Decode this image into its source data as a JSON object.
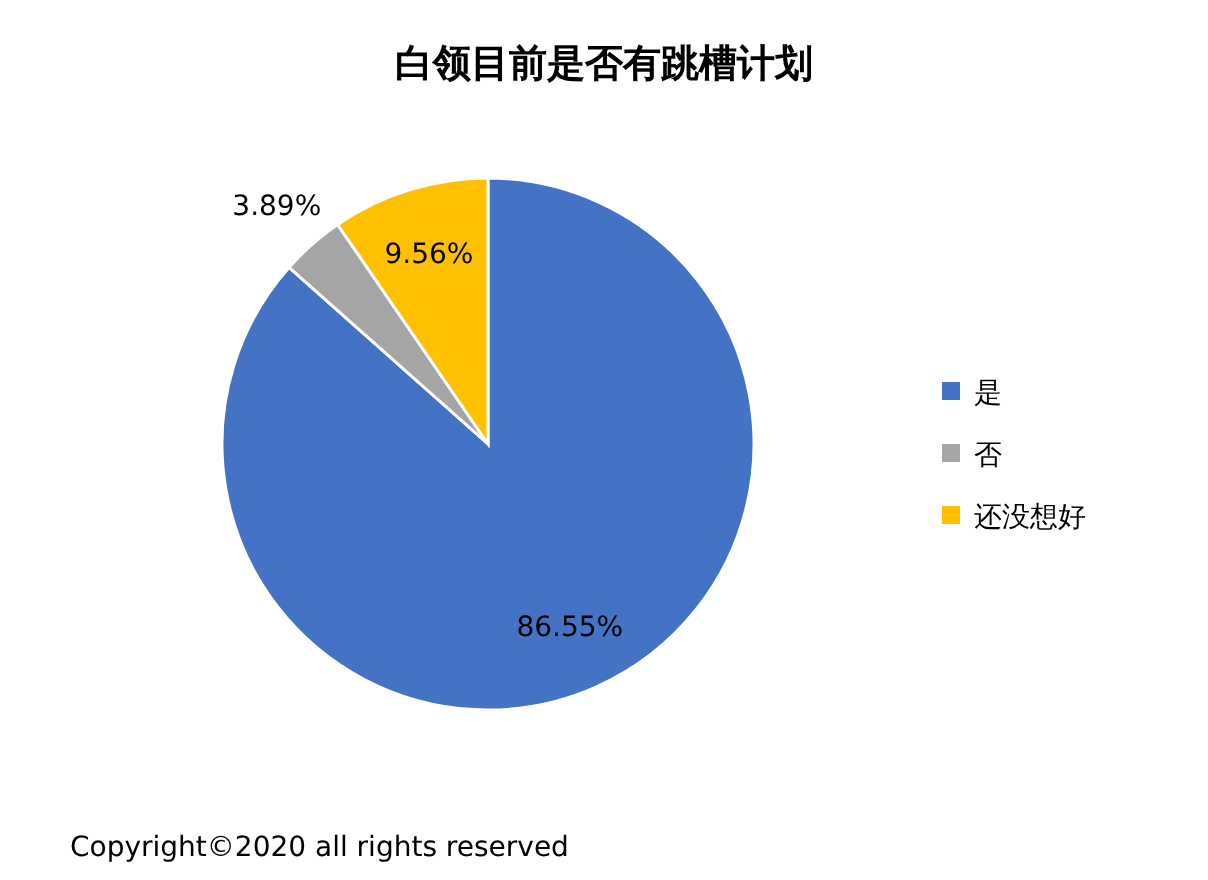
{
  "chart_data": {
    "type": "pie",
    "title": "白领目前是否有跳槽计划",
    "categories": [
      "是",
      "否",
      "还没想好"
    ],
    "values": [
      86.55,
      3.89,
      9.56
    ],
    "colors": [
      "#4472c4",
      "#a5a5a5",
      "#ffc000"
    ],
    "value_labels": [
      "86.55%",
      "3.89%",
      "9.56%"
    ],
    "legend": "right",
    "annotations": [
      "Copyright©2020 all rights reserved"
    ]
  }
}
